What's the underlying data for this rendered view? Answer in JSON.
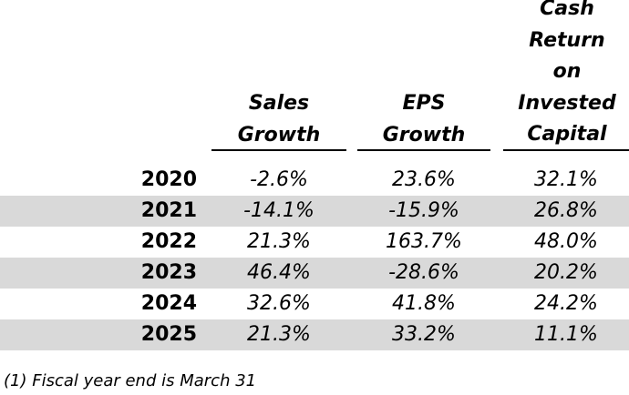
{
  "headers": {
    "sales_line1": "Sales",
    "sales_line2": "Growth",
    "eps_line1": "EPS",
    "eps_line2": "Growth",
    "cash_line1": "Cash",
    "cash_line2": "Return",
    "cash_line3": "on",
    "cash_line4": "Invested",
    "cash_line5": "Capital"
  },
  "rows": [
    {
      "year": "2020",
      "sales": "-2.6%",
      "eps": "23.6%",
      "cash": "32.1%"
    },
    {
      "year": "2021",
      "sales": "-14.1%",
      "eps": "-15.9%",
      "cash": "26.8%"
    },
    {
      "year": "2022",
      "sales": "21.3%",
      "eps": "163.7%",
      "cash": "48.0%"
    },
    {
      "year": "2023",
      "sales": "46.4%",
      "eps": "-28.6%",
      "cash": "20.2%"
    },
    {
      "year": "2024",
      "sales": "32.6%",
      "eps": "41.8%",
      "cash": "24.2%"
    },
    {
      "year": "2025",
      "sales": "21.3%",
      "eps": "33.2%",
      "cash": "11.1%"
    }
  ],
  "footnote": "(1) Fiscal year end is March 31",
  "colors": {
    "row_shade": "#d9d9d9",
    "background": "#ffffff",
    "text": "#000000"
  }
}
